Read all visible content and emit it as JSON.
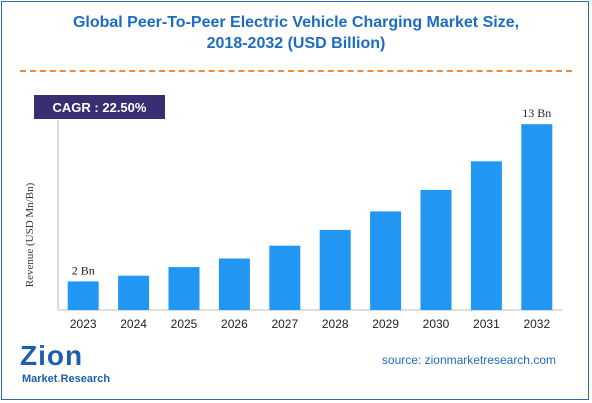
{
  "title_line1": "Global Peer-To-Peer Electric Vehicle Charging Market Size,",
  "title_line2": "2018-2032 (USD Billion)",
  "cagr_label": "CAGR : 22.50%",
  "source": "source: zionmarketresearch.com",
  "logo": {
    "top": "Zion",
    "bottom_left": "Market",
    "bottom_right": "Research"
  },
  "colors": {
    "bar": "#2196f3",
    "title": "#1c6cc4",
    "cagr_bg": "#3a2e73",
    "divider": "#f08a3a"
  },
  "chart_data": {
    "type": "bar",
    "title": "Global Peer-To-Peer Electric Vehicle Charging Market Size, 2018-2032 (USD Billion)",
    "xlabel": "",
    "ylabel": "Revenue (USD Mn/Bn)",
    "categories": [
      "2023",
      "2024",
      "2025",
      "2026",
      "2027",
      "2028",
      "2029",
      "2030",
      "2031",
      "2032"
    ],
    "values": [
      2.0,
      2.4,
      3.0,
      3.6,
      4.5,
      5.6,
      6.9,
      8.4,
      10.4,
      13.0
    ],
    "data_labels": [
      {
        "index": 0,
        "text": "2 Bn"
      },
      {
        "index": 9,
        "text": "13 Bn"
      }
    ],
    "ylim": [
      0,
      14.2
    ],
    "grid": false,
    "legend": "none"
  }
}
